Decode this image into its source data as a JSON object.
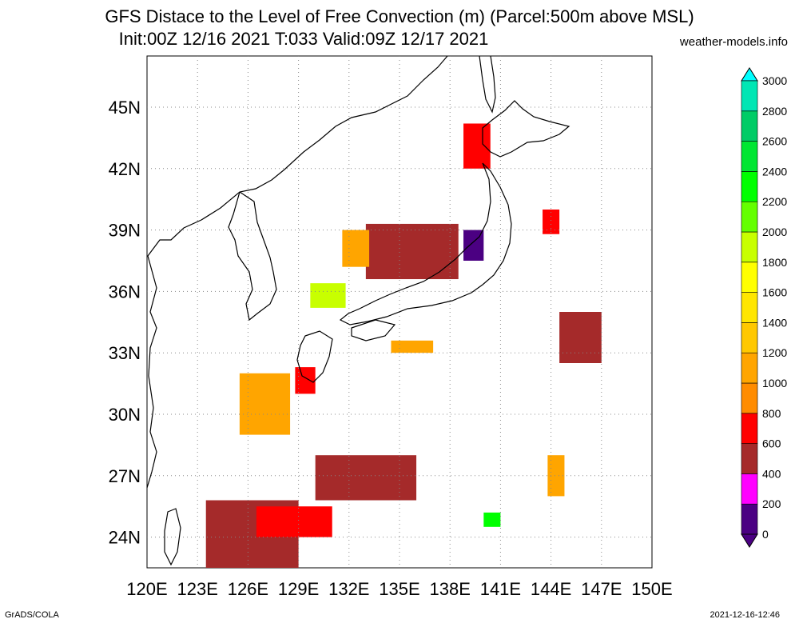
{
  "title": "GFS Distace to the Level of Free Convection (m) (Parcel:500m above MSL)",
  "subtitle": "Init:00Z 12/16 2021 T:033 Valid:09Z 12/17 2021",
  "site": "weather-models.info",
  "footer_left": "GrADS/COLA",
  "footer_right": "2021-12-16-12:46",
  "lon_labels": [
    "120E",
    "123E",
    "126E",
    "129E",
    "132E",
    "135E",
    "138E",
    "141E",
    "144E",
    "147E",
    "150E"
  ],
  "lat_labels": [
    "45N",
    "42N",
    "39N",
    "36N",
    "33N",
    "30N",
    "27N",
    "24N"
  ],
  "lon_range": [
    120,
    150
  ],
  "lat_range": [
    22.5,
    47.5
  ],
  "colorbar": {
    "labels": [
      "0",
      "200",
      "400",
      "600",
      "800",
      "1000",
      "1200",
      "1400",
      "1600",
      "1800",
      "2000",
      "2200",
      "2400",
      "2600",
      "2800",
      "3000"
    ],
    "colors": [
      "#4b0082",
      "#ff00ff",
      "#a52a2a",
      "#ff0000",
      "#ff8c00",
      "#ffa500",
      "#ffc800",
      "#ffe600",
      "#ffff00",
      "#c8ff00",
      "#64ff00",
      "#00ff00",
      "#00e632",
      "#00cc66",
      "#00e6b4",
      "#00ffff"
    ]
  },
  "regions": [
    {
      "lon": [
        133.0,
        138.5
      ],
      "lat": [
        36.6,
        39.3
      ],
      "color": "#a52a2a"
    },
    {
      "lon": [
        131.6,
        133.2
      ],
      "lat": [
        37.2,
        39.0
      ],
      "color": "#ffa500"
    },
    {
      "lon": [
        138.8,
        140.4
      ],
      "lat": [
        42.0,
        44.2
      ],
      "color": "#ff0000"
    },
    {
      "lon": [
        138.8,
        140.0
      ],
      "lat": [
        37.5,
        39.0
      ],
      "color": "#4b0082"
    },
    {
      "lon": [
        129.7,
        131.8
      ],
      "lat": [
        35.2,
        36.4
      ],
      "color": "#c8ff00"
    },
    {
      "lon": [
        125.5,
        128.5
      ],
      "lat": [
        29.0,
        32.0
      ],
      "color": "#ffa500"
    },
    {
      "lon": [
        128.8,
        130.0
      ],
      "lat": [
        31.0,
        32.3
      ],
      "color": "#ff0000"
    },
    {
      "lon": [
        123.5,
        129.0
      ],
      "lat": [
        22.5,
        25.8
      ],
      "color": "#a52a2a"
    },
    {
      "lon": [
        126.5,
        131.0
      ],
      "lat": [
        24.0,
        25.5
      ],
      "color": "#ff0000"
    },
    {
      "lon": [
        130.0,
        136.0
      ],
      "lat": [
        25.8,
        28.0
      ],
      "color": "#a52a2a"
    },
    {
      "lon": [
        144.5,
        147.0
      ],
      "lat": [
        32.5,
        35.0
      ],
      "color": "#a52a2a"
    },
    {
      "lon": [
        143.8,
        144.8
      ],
      "lat": [
        26.0,
        28.0
      ],
      "color": "#ffa500"
    },
    {
      "lon": [
        143.5,
        144.5
      ],
      "lat": [
        38.8,
        40.0
      ],
      "color": "#ff0000"
    },
    {
      "lon": [
        140.0,
        141.0
      ],
      "lat": [
        24.5,
        25.2
      ],
      "color": "#00ff00"
    },
    {
      "lon": [
        134.5,
        137.0
      ],
      "lat": [
        33.0,
        33.6
      ],
      "color": "#ffa500"
    }
  ]
}
